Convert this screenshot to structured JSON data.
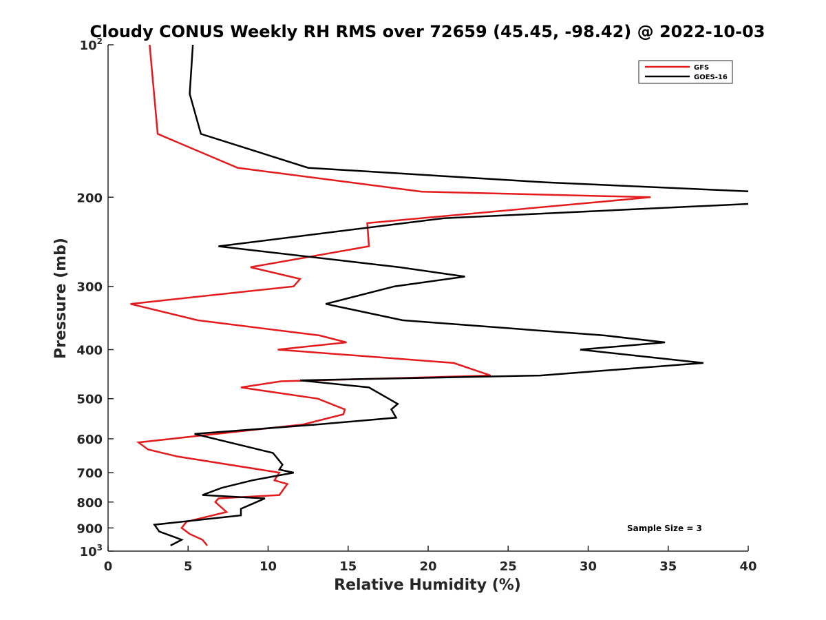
{
  "chart_data": {
    "type": "line",
    "title": "Cloudy CONUS Weekly RH RMS over 72659 (45.45, -98.42) @ 2022-10-03",
    "xlabel": "Relative Humidity (%)",
    "ylabel": "Pressure (mb)",
    "xlim": [
      0,
      40
    ],
    "ylim": [
      100,
      1000
    ],
    "y_scale": "log",
    "y_reversed": true,
    "grid": false,
    "legend_position": "top-right",
    "annotation": "Sample Size = 3",
    "x_ticks": [
      "0",
      "5",
      "10",
      "15",
      "20",
      "25",
      "30",
      "35",
      "40"
    ],
    "y_ticks": [
      {
        "value": 100,
        "base": "10",
        "exp": "2"
      },
      {
        "value": 200,
        "label": "200"
      },
      {
        "value": 300,
        "label": "300"
      },
      {
        "value": 400,
        "label": "400"
      },
      {
        "value": 500,
        "label": "500"
      },
      {
        "value": 600,
        "label": "600"
      },
      {
        "value": 700,
        "label": "700"
      },
      {
        "value": 800,
        "label": "800"
      },
      {
        "value": 900,
        "label": "900"
      },
      {
        "value": 1000,
        "base": "10",
        "exp": "3"
      }
    ],
    "series": [
      {
        "name": "GFS",
        "color": "#e41a1c",
        "points": [
          [
            2.6,
            100
          ],
          [
            3.1,
            150
          ],
          [
            8.1,
            175
          ],
          [
            19.6,
            195
          ],
          [
            33.9,
            200
          ],
          [
            16.2,
            225
          ],
          [
            16.3,
            250
          ],
          [
            8.9,
            275
          ],
          [
            12.0,
            290
          ],
          [
            11.6,
            300
          ],
          [
            1.4,
            325
          ],
          [
            5.6,
            350
          ],
          [
            13.2,
            375
          ],
          [
            14.9,
            387
          ],
          [
            10.6,
            400
          ],
          [
            21.6,
            425
          ],
          [
            23.9,
            450
          ],
          [
            10.8,
            462
          ],
          [
            8.3,
            475
          ],
          [
            13.1,
            500
          ],
          [
            14.8,
            525
          ],
          [
            14.7,
            537
          ],
          [
            12.2,
            562
          ],
          [
            1.9,
            610
          ],
          [
            2.5,
            630
          ],
          [
            4.3,
            650
          ],
          [
            10.7,
            700
          ],
          [
            10.4,
            725
          ],
          [
            11.2,
            737
          ],
          [
            10.7,
            775
          ],
          [
            6.9,
            787
          ],
          [
            6.7,
            800
          ],
          [
            7.4,
            837
          ],
          [
            4.9,
            875
          ],
          [
            4.6,
            900
          ],
          [
            5.1,
            925
          ],
          [
            5.9,
            950
          ],
          [
            6.2,
            975
          ]
        ]
      },
      {
        "name": "GOES-16",
        "color": "#000000",
        "points": [
          [
            5.3,
            100
          ],
          [
            5.1,
            125
          ],
          [
            5.8,
            150
          ],
          [
            12.5,
            175
          ],
          [
            27.4,
            187
          ],
          [
            40.5,
            195
          ],
          [
            40.3,
            206
          ],
          [
            21.0,
            220
          ],
          [
            6.9,
            250
          ],
          [
            18.2,
            275
          ],
          [
            22.3,
            287
          ],
          [
            17.9,
            300
          ],
          [
            13.6,
            325
          ],
          [
            18.4,
            350
          ],
          [
            31.0,
            375
          ],
          [
            34.8,
            387
          ],
          [
            29.5,
            400
          ],
          [
            37.2,
            425
          ],
          [
            27.0,
            450
          ],
          [
            12.0,
            460
          ],
          [
            16.3,
            475
          ],
          [
            18.1,
            512
          ],
          [
            17.7,
            525
          ],
          [
            18.0,
            545
          ],
          [
            13.1,
            562
          ],
          [
            5.4,
            587
          ],
          [
            10.3,
            640
          ],
          [
            10.9,
            675
          ],
          [
            10.7,
            690
          ],
          [
            11.6,
            700
          ],
          [
            9.0,
            725
          ],
          [
            7.1,
            750
          ],
          [
            5.9,
            775
          ],
          [
            9.8,
            787
          ],
          [
            8.3,
            825
          ],
          [
            8.3,
            850
          ],
          [
            2.9,
            887
          ],
          [
            3.2,
            915
          ],
          [
            4.1,
            937
          ],
          [
            4.6,
            950
          ],
          [
            3.9,
            975
          ]
        ]
      }
    ]
  }
}
